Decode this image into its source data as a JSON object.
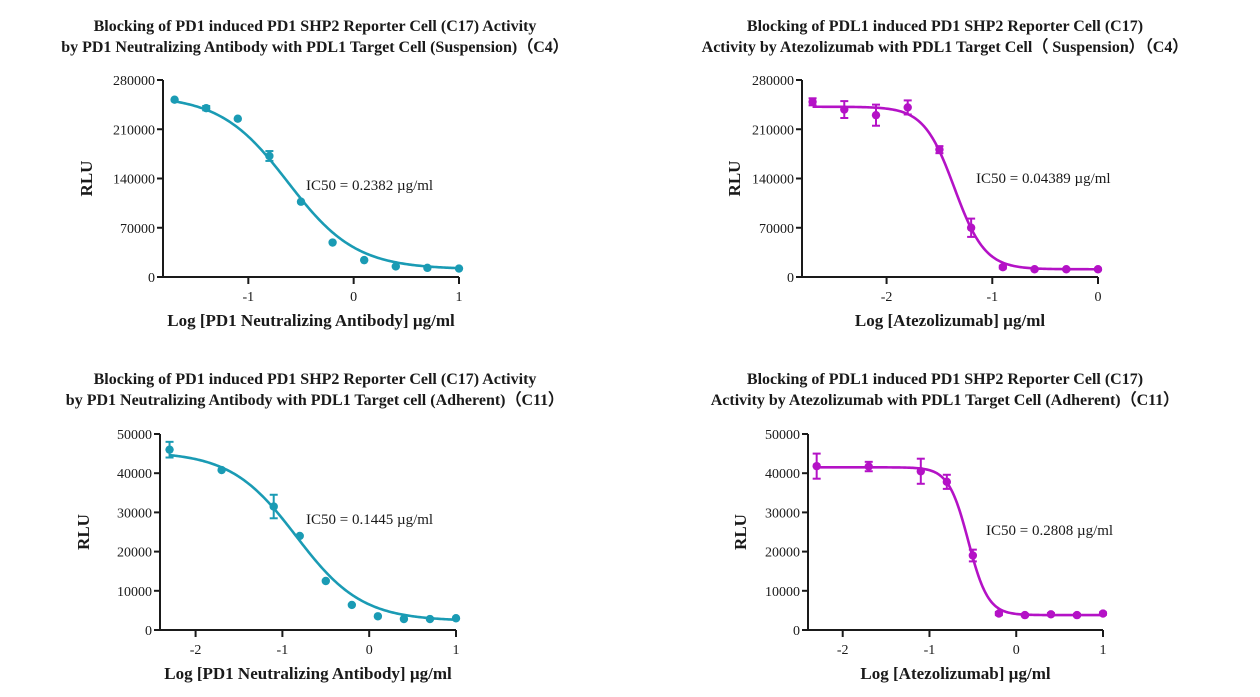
{
  "chart_data": [
    {
      "type": "scatter",
      "title_line1": "Blocking of PD1 induced PD1 SHP2 Reporter Cell (C17) Activity",
      "title_line2": "by PD1 Neutralizing Antibody with PDL1 Target Cell (Suspension)（C4）",
      "xlabel": "Log [PD1 Neutralizing Antibody] µg/ml",
      "ylabel": "RLU",
      "xlim": [
        -1.81,
        1.0
      ],
      "ylim": [
        0,
        280000
      ],
      "xticks": [
        -1,
        0,
        1
      ],
      "xtick_labels": [
        "-1",
        "0",
        "1"
      ],
      "yticks": [
        0,
        70000,
        140000,
        210000,
        280000
      ],
      "ytick_labels": [
        "0",
        "70000",
        "140000",
        "210000",
        "280000"
      ],
      "annotation": "IC50 = 0.2382 µg/ml",
      "color": "#1a9bb4",
      "fit": {
        "top": 258000,
        "bottom": 11000,
        "logIC50": -0.623,
        "hill": 1.35
      },
      "series": [
        {
          "name": "PD1 Neutralizing Antibody",
          "x": [
            -1.7,
            -1.4,
            -1.1,
            -0.8,
            -0.5,
            -0.2,
            0.1,
            0.4,
            0.7,
            1.0
          ],
          "y": [
            252000,
            240000,
            225000,
            172000,
            107000,
            49000,
            24000,
            15000,
            13000,
            12000
          ],
          "err": [
            0,
            3000,
            0,
            7000,
            0,
            0,
            0,
            0,
            0,
            0
          ]
        }
      ]
    },
    {
      "type": "scatter",
      "title_line1": "Blocking of PDL1 induced PD1 SHP2 Reporter Cell (C17)",
      "title_line2": "Activity by Atezolizumab with PDL1 Target Cell（ Suspension）（C4）",
      "xlabel": "Log [Atezolizumab] µg/ml",
      "ylabel": "RLU",
      "xlim": [
        -2.8,
        0.0
      ],
      "ylim": [
        0,
        280000
      ],
      "xticks": [
        -2,
        -1,
        0
      ],
      "xtick_labels": [
        "-2",
        "-1",
        "0"
      ],
      "yticks": [
        0,
        70000,
        140000,
        210000,
        280000
      ],
      "ytick_labels": [
        "0",
        "70000",
        "140000",
        "210000",
        "280000"
      ],
      "annotation": "IC50 = 0.04389 µg/ml",
      "color": "#b412c6",
      "fit": {
        "top": 242000,
        "bottom": 11000,
        "logIC50": -1.358,
        "hill": 3.0
      },
      "series": [
        {
          "name": "Atezolizumab",
          "x": [
            -2.7,
            -2.4,
            -2.1,
            -1.8,
            -1.5,
            -1.2,
            -0.9,
            -0.6,
            -0.3,
            0.0
          ],
          "y": [
            249000,
            238000,
            230000,
            241000,
            181000,
            70000,
            14000,
            11000,
            11000,
            11000
          ],
          "err": [
            5000,
            12000,
            15000,
            10000,
            5000,
            13000,
            2000,
            1000,
            1000,
            1000
          ]
        }
      ]
    },
    {
      "type": "scatter",
      "title_line1": "Blocking of PD1 induced PD1 SHP2 Reporter Cell (C17) Activity",
      "title_line2": "by PD1 Neutralizing Antibody with PDL1 Target cell (Adherent)（C11）",
      "xlabel": "Log [PD1 Neutralizing Antibody] µg/ml",
      "ylabel": "RLU",
      "xlim": [
        -2.41,
        1.0
      ],
      "ylim": [
        0,
        50000
      ],
      "xticks": [
        -2,
        -1,
        0,
        1
      ],
      "xtick_labels": [
        "-2",
        "-1",
        "0",
        "1"
      ],
      "yticks": [
        0,
        10000,
        20000,
        30000,
        40000,
        50000
      ],
      "ytick_labels": [
        "0",
        "10000",
        "20000",
        "30000",
        "40000",
        "50000"
      ],
      "annotation": "IC50 = 0.1445 µg/ml",
      "color": "#1a9bb4",
      "fit": {
        "top": 45500,
        "bottom": 2300,
        "logIC50": -0.84,
        "hill": 1.15
      },
      "series": [
        {
          "name": "PD1 Neutralizing Antibody",
          "x": [
            -2.3,
            -1.7,
            -1.1,
            -0.8,
            -0.5,
            -0.2,
            0.1,
            0.4,
            0.7,
            1.0
          ],
          "y": [
            46000,
            40800,
            31500,
            24000,
            12500,
            6400,
            3500,
            2800,
            2800,
            3000
          ],
          "err": [
            2000,
            0,
            3000,
            0,
            0,
            0,
            0,
            0,
            0,
            0
          ]
        }
      ]
    },
    {
      "type": "scatter",
      "title_line1": "Blocking of PDL1 induced PD1 SHP2 Reporter Cell (C17)",
      "title_line2": "Activity by Atezolizumab with PDL1 Target Cell (Adherent)（C11）",
      "xlabel": "Log [Atezolizumab] µg/ml",
      "ylabel": "RLU",
      "xlim": [
        -2.4,
        1.0
      ],
      "ylim": [
        0,
        50000
      ],
      "xticks": [
        -2,
        -1,
        0,
        1
      ],
      "xtick_labels": [
        "-2",
        "-1",
        "0",
        "1"
      ],
      "yticks": [
        0,
        10000,
        20000,
        30000,
        40000,
        50000
      ],
      "ytick_labels": [
        "0",
        "10000",
        "20000",
        "30000",
        "40000",
        "50000"
      ],
      "annotation": "IC50 = 0.2808 µg/ml",
      "color": "#b412c6",
      "fit": {
        "top": 41500,
        "bottom": 3800,
        "logIC50": -0.552,
        "hill": 3.8
      },
      "series": [
        {
          "name": "Atezolizumab",
          "x": [
            -2.3,
            -1.7,
            -1.1,
            -0.8,
            -0.5,
            -0.2,
            0.1,
            0.4,
            0.7,
            1.0
          ],
          "y": [
            41800,
            41700,
            40500,
            37800,
            19000,
            4200,
            3800,
            4000,
            3800,
            4200
          ],
          "err": [
            3200,
            1200,
            3200,
            1800,
            1500,
            400,
            300,
            300,
            300,
            300
          ]
        }
      ]
    }
  ]
}
